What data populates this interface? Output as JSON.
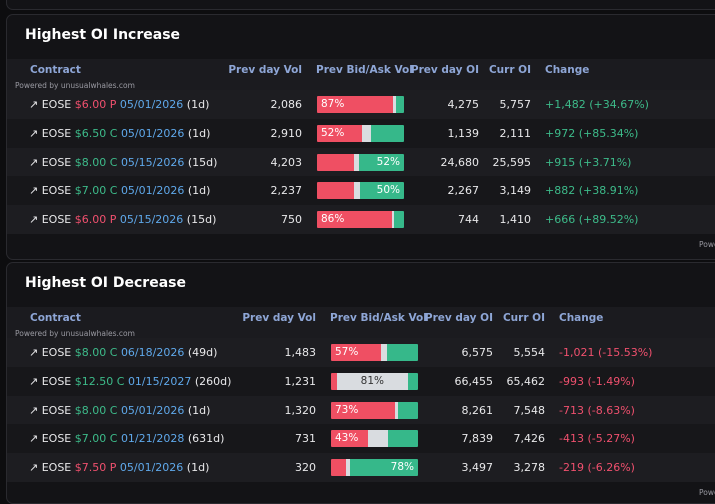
{
  "panels": [
    {
      "title": "Highest OI Increase",
      "columns": [
        "Contract",
        "Prev day Vol",
        "Prev Bid/Ask Vol",
        "Prev day OI",
        "Curr OI",
        "Change"
      ],
      "powered_by": "Powered by unusualwhales.com",
      "change_color": "#3dbb8a",
      "rows": [
        {
          "ticker": "EOSE",
          "strike": "$6.00 P",
          "side_color": "#f0506e",
          "expiry": "05/01/2026",
          "dte": "(1d)",
          "prev_vol": "2,086",
          "bar": [
            87,
            4,
            9
          ],
          "bar_label": "87%",
          "label_segment": 0,
          "prev_oi": "4,275",
          "curr_oi": "5,757",
          "change": "+1,482 (+34.67%)"
        },
        {
          "ticker": "EOSE",
          "strike": "$6.50 C",
          "side_color": "#3dbb8a",
          "expiry": "05/01/2026",
          "dte": "(1d)",
          "prev_vol": "2,910",
          "bar": [
            52,
            10,
            38
          ],
          "bar_label": "52%",
          "label_segment": 0,
          "prev_oi": "1,139",
          "curr_oi": "2,111",
          "change": "+972 (+85.34%)"
        },
        {
          "ticker": "EOSE",
          "strike": "$8.00 C",
          "side_color": "#3dbb8a",
          "expiry": "05/15/2026",
          "dte": "(15d)",
          "prev_vol": "4,203",
          "bar": [
            43,
            5,
            52
          ],
          "bar_label": "52%",
          "label_segment": 2,
          "prev_oi": "24,680",
          "curr_oi": "25,595",
          "change": "+915 (+3.71%)"
        },
        {
          "ticker": "EOSE",
          "strike": "$7.00 C",
          "side_color": "#3dbb8a",
          "expiry": "05/01/2026",
          "dte": "(1d)",
          "prev_vol": "2,237",
          "bar": [
            43,
            7,
            50
          ],
          "bar_label": "50%",
          "label_segment": 2,
          "prev_oi": "2,267",
          "curr_oi": "3,149",
          "change": "+882 (+38.91%)"
        },
        {
          "ticker": "EOSE",
          "strike": "$6.00 P",
          "side_color": "#f0506e",
          "expiry": "05/15/2026",
          "dte": "(15d)",
          "prev_vol": "750",
          "bar": [
            86,
            3,
            11
          ],
          "bar_label": "86%",
          "label_segment": 0,
          "prev_oi": "744",
          "curr_oi": "1,410",
          "change": "+666 (+89.52%)"
        }
      ]
    },
    {
      "title": "Highest OI Decrease",
      "columns": [
        "Contract",
        "Prev day Vol",
        "Prev Bid/Ask Vol",
        "Prev day OI",
        "Curr OI",
        "Change"
      ],
      "powered_by": "Powered by unusualwhales.com",
      "change_color": "#f0506e",
      "rows": [
        {
          "ticker": "EOSE",
          "strike": "$8.00 C",
          "side_color": "#3dbb8a",
          "expiry": "06/18/2026",
          "dte": "(49d)",
          "prev_vol": "1,483",
          "bar": [
            57,
            7,
            36
          ],
          "bar_label": "57%",
          "label_segment": 0,
          "prev_oi": "6,575",
          "curr_oi": "5,554",
          "change": "-1,021 (-15.53%)"
        },
        {
          "ticker": "EOSE",
          "strike": "$12.50 C",
          "side_color": "#3dbb8a",
          "expiry": "01/15/2027",
          "dte": "(260d)",
          "prev_vol": "1,231",
          "bar": [
            7,
            81,
            12
          ],
          "bar_label": "81%",
          "label_segment": 1,
          "prev_oi": "66,455",
          "curr_oi": "65,462",
          "change": "-993 (-1.49%)"
        },
        {
          "ticker": "EOSE",
          "strike": "$8.00 C",
          "side_color": "#3dbb8a",
          "expiry": "05/01/2026",
          "dte": "(1d)",
          "prev_vol": "1,320",
          "bar": [
            73,
            4,
            23
          ],
          "bar_label": "73%",
          "label_segment": 0,
          "prev_oi": "8,261",
          "curr_oi": "7,548",
          "change": "-713 (-8.63%)"
        },
        {
          "ticker": "EOSE",
          "strike": "$7.00 C",
          "side_color": "#3dbb8a",
          "expiry": "01/21/2028",
          "dte": "(631d)",
          "prev_vol": "731",
          "bar": [
            43,
            23,
            34
          ],
          "bar_label": "43%",
          "label_segment": 0,
          "prev_oi": "7,839",
          "curr_oi": "7,426",
          "change": "-413 (-5.27%)"
        },
        {
          "ticker": "EOSE",
          "strike": "$7.50 P",
          "side_color": "#f0506e",
          "expiry": "05/01/2026",
          "dte": "(1d)",
          "prev_vol": "320",
          "bar": [
            17,
            5,
            78
          ],
          "bar_label": "78%",
          "label_segment": 2,
          "prev_oi": "3,497",
          "curr_oi": "3,278",
          "change": "-219 (-6.26%)"
        }
      ]
    }
  ]
}
